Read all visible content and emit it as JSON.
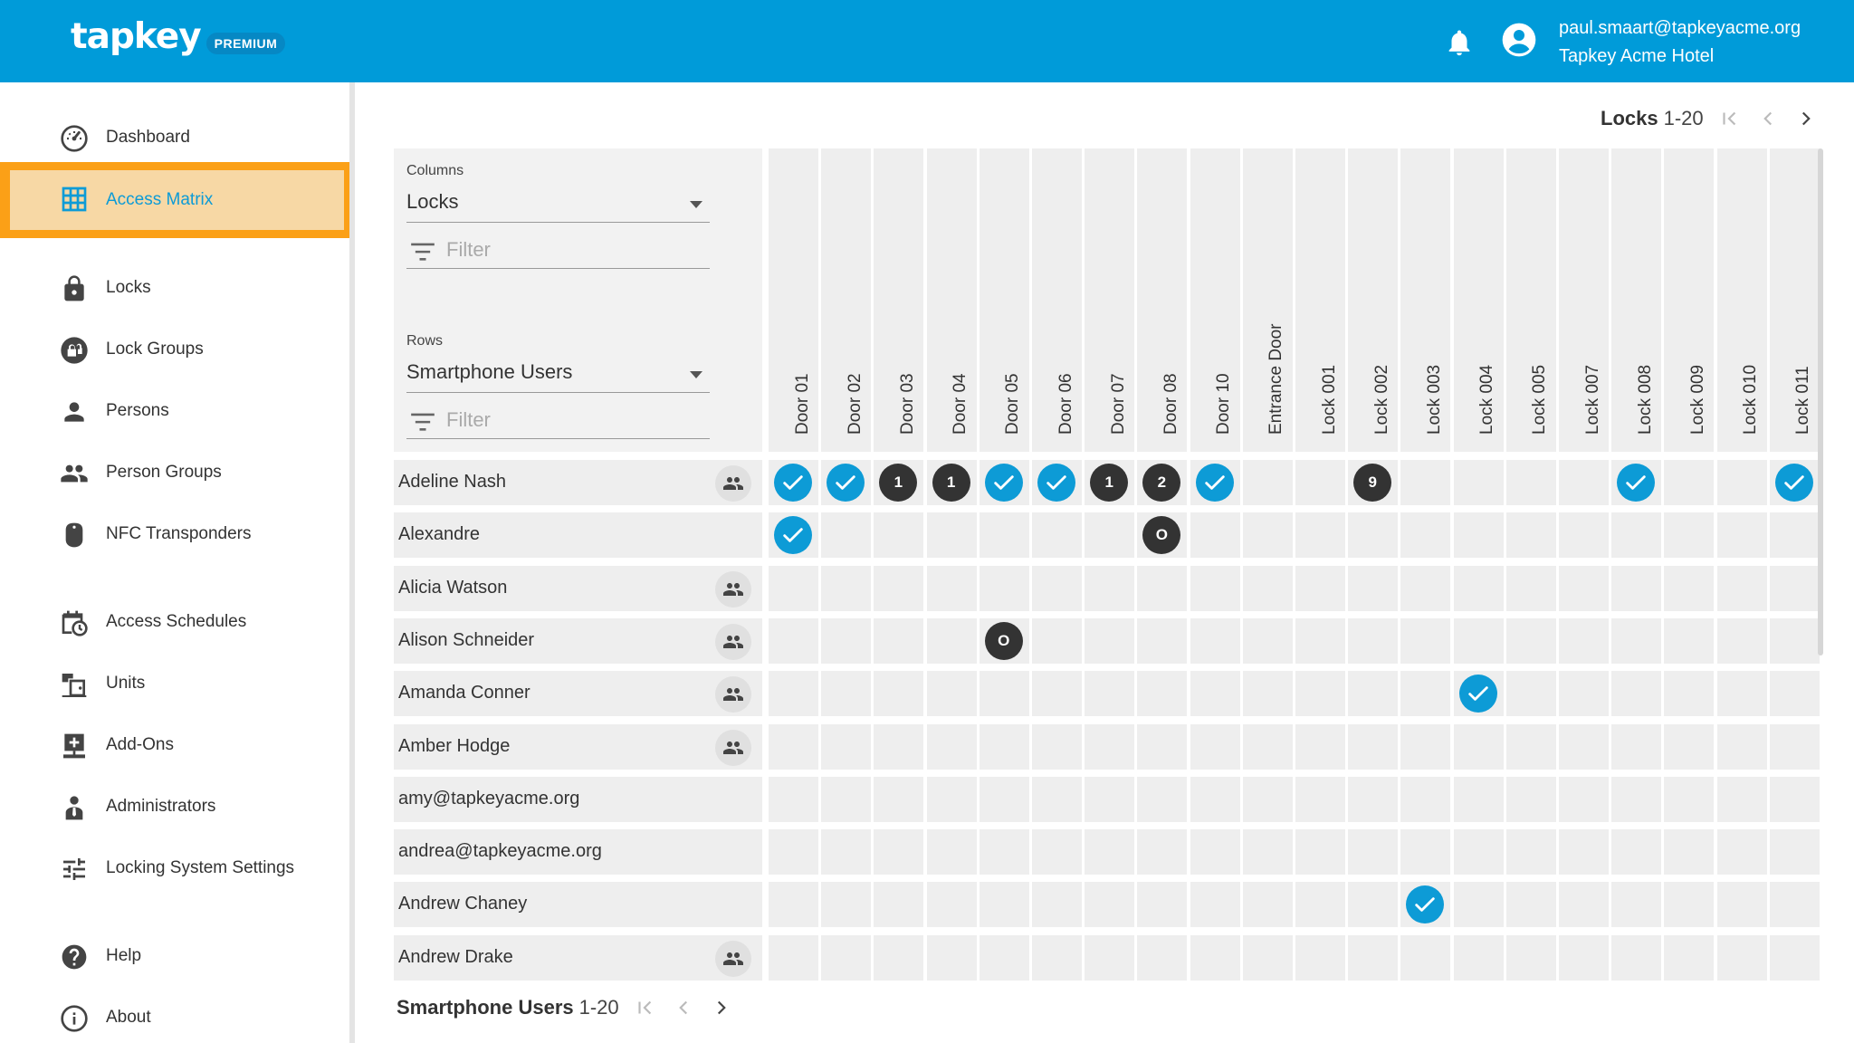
{
  "header": {
    "logo_text": "tapkey",
    "logo_badge": "PREMIUM",
    "user_email": "paul.smaart@tapkeyacme.org",
    "user_org": "Tapkey Acme Hotel"
  },
  "colors": {
    "primary": "#009bd9",
    "active_outline": "#fba017",
    "active_fill": "#f7d8a5",
    "badge_dark": "#333333"
  },
  "sidebar": {
    "items": [
      {
        "label": "Dashboard",
        "icon": "dashboard-icon"
      },
      {
        "label": "Access Matrix",
        "icon": "grid-icon",
        "active": true
      },
      {
        "label": "Locks",
        "icon": "lock-icon"
      },
      {
        "label": "Lock Groups",
        "icon": "lock-group-icon"
      },
      {
        "label": "Persons",
        "icon": "person-icon"
      },
      {
        "label": "Person Groups",
        "icon": "people-icon"
      },
      {
        "label": "NFC Transponders",
        "icon": "transponder-icon"
      },
      {
        "label": "Access Schedules",
        "icon": "schedule-icon"
      },
      {
        "label": "Units",
        "icon": "units-icon"
      },
      {
        "label": "Add-Ons",
        "icon": "addon-icon"
      },
      {
        "label": "Administrators",
        "icon": "admin-icon"
      },
      {
        "label": "Locking System Settings",
        "icon": "tune-icon"
      },
      {
        "label": "Help",
        "icon": "help-icon"
      },
      {
        "label": "About",
        "icon": "info-icon"
      }
    ]
  },
  "top_pager": {
    "label": "Locks",
    "range": "1-20"
  },
  "bottom_pager": {
    "label": "Smartphone Users",
    "range": "1-20"
  },
  "controls": {
    "columns_label": "Columns",
    "columns_value": "Locks",
    "columns_filter_placeholder": "Filter",
    "rows_label": "Rows",
    "rows_value": "Smartphone Users",
    "rows_filter_placeholder": "Filter"
  },
  "columns": [
    "Door 01",
    "Door 02",
    "Door 03",
    "Door 04",
    "Door 05",
    "Door 06",
    "Door 07",
    "Door 08",
    "Door 10",
    "Entrance Door",
    "Lock 001",
    "Lock 002",
    "Lock 003",
    "Lock 004",
    "Lock 005",
    "Lock 007",
    "Lock 008",
    "Lock 009",
    "Lock 010",
    "Lock 011"
  ],
  "rows": [
    {
      "name": "Adeline Nash",
      "group": true
    },
    {
      "name": "Alexandre",
      "group": false
    },
    {
      "name": "Alicia Watson",
      "group": true
    },
    {
      "name": "Alison Schneider",
      "group": true
    },
    {
      "name": "Amanda Conner",
      "group": true
    },
    {
      "name": "Amber Hodge",
      "group": true
    },
    {
      "name": "amy@tapkeyacme.org",
      "group": false
    },
    {
      "name": "andrea@tapkeyacme.org",
      "group": false
    },
    {
      "name": "Andrew Chaney",
      "group": false
    },
    {
      "name": "Andrew Drake",
      "group": true
    }
  ],
  "grants": [
    {
      "row": 0,
      "col": 0,
      "type": "check"
    },
    {
      "row": 0,
      "col": 1,
      "type": "check"
    },
    {
      "row": 0,
      "col": 2,
      "type": "num",
      "label": "1"
    },
    {
      "row": 0,
      "col": 3,
      "type": "num",
      "label": "1"
    },
    {
      "row": 0,
      "col": 4,
      "type": "check"
    },
    {
      "row": 0,
      "col": 5,
      "type": "check"
    },
    {
      "row": 0,
      "col": 6,
      "type": "num",
      "label": "1"
    },
    {
      "row": 0,
      "col": 7,
      "type": "num",
      "label": "2"
    },
    {
      "row": 0,
      "col": 8,
      "type": "check"
    },
    {
      "row": 0,
      "col": 11,
      "type": "num",
      "label": "9"
    },
    {
      "row": 0,
      "col": 16,
      "type": "check"
    },
    {
      "row": 0,
      "col": 19,
      "type": "check"
    },
    {
      "row": 1,
      "col": 0,
      "type": "check"
    },
    {
      "row": 1,
      "col": 7,
      "type": "num",
      "label": "O"
    },
    {
      "row": 3,
      "col": 4,
      "type": "num",
      "label": "O"
    },
    {
      "row": 4,
      "col": 13,
      "type": "check"
    },
    {
      "row": 8,
      "col": 12,
      "type": "check"
    }
  ]
}
